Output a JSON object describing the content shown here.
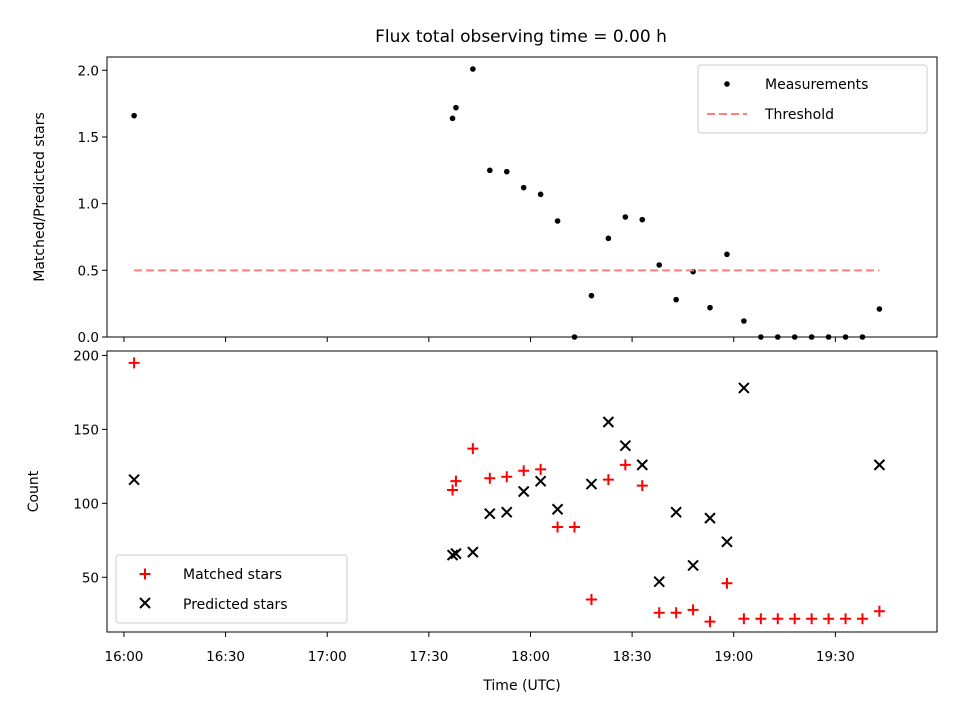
{
  "title": "Flux total observing time = 0.00 h",
  "colors": {
    "measurements": "#000000",
    "threshold": "#ff7f7f",
    "matched": "#ff0000",
    "predicted": "#000000"
  },
  "chart_data": [
    {
      "type": "scatter",
      "title": "Flux total observing time = 0.00 h",
      "ylabel": "Matched/Predicted stars",
      "xlabel": "",
      "xlim": [
        "15:55",
        "20:00"
      ],
      "ylim": [
        0,
        2.1
      ],
      "yticks": [
        "0.0",
        "0.5",
        "1.0",
        "1.5",
        "2.0"
      ],
      "legend_position": "top-right",
      "series": [
        {
          "name": "Measurements",
          "marker": "dot",
          "points": [
            [
              "16:03",
              1.66
            ],
            [
              "17:37",
              1.64
            ],
            [
              "17:38",
              1.72
            ],
            [
              "17:43",
              2.01
            ],
            [
              "17:48",
              1.25
            ],
            [
              "17:53",
              1.24
            ],
            [
              "17:58",
              1.12
            ],
            [
              "18:03",
              1.07
            ],
            [
              "18:08",
              0.87
            ],
            [
              "18:13",
              0.0
            ],
            [
              "18:18",
              0.31
            ],
            [
              "18:23",
              0.74
            ],
            [
              "18:28",
              0.9
            ],
            [
              "18:33",
              0.88
            ],
            [
              "18:38",
              0.54
            ],
            [
              "18:43",
              0.28
            ],
            [
              "18:48",
              0.49
            ],
            [
              "18:53",
              0.22
            ],
            [
              "18:58",
              0.62
            ],
            [
              "19:03",
              0.12
            ],
            [
              "19:08",
              0.0
            ],
            [
              "19:13",
              0.0
            ],
            [
              "19:18",
              0.0
            ],
            [
              "19:23",
              0.0
            ],
            [
              "19:28",
              0.0
            ],
            [
              "19:33",
              0.0
            ],
            [
              "19:38",
              0.0
            ],
            [
              "19:43",
              0.21
            ]
          ]
        },
        {
          "name": "Threshold",
          "marker": "dashed-line",
          "points": [
            [
              "16:03",
              0.5
            ],
            [
              "19:43",
              0.5
            ]
          ]
        }
      ]
    },
    {
      "type": "scatter",
      "title": "",
      "ylabel": "Count",
      "xlabel": "Time (UTC)",
      "xlim": [
        "15:55",
        "20:00"
      ],
      "ylim": [
        13,
        203
      ],
      "yticks": [
        "50",
        "100",
        "150",
        "200"
      ],
      "xticks": [
        "16:00",
        "16:30",
        "17:00",
        "17:30",
        "18:00",
        "18:30",
        "19:00",
        "19:30"
      ],
      "legend_position": "bottom-left",
      "series": [
        {
          "name": "Matched stars",
          "marker": "plus",
          "points": [
            [
              "16:03",
              195
            ],
            [
              "17:37",
              109
            ],
            [
              "17:38",
              115
            ],
            [
              "17:43",
              137
            ],
            [
              "17:48",
              117
            ],
            [
              "17:53",
              118
            ],
            [
              "17:58",
              122
            ],
            [
              "18:03",
              123
            ],
            [
              "18:08",
              84
            ],
            [
              "18:13",
              84
            ],
            [
              "18:18",
              35
            ],
            [
              "18:23",
              116
            ],
            [
              "18:28",
              126
            ],
            [
              "18:33",
              112
            ],
            [
              "18:38",
              26
            ],
            [
              "18:43",
              26
            ],
            [
              "18:48",
              28
            ],
            [
              "18:53",
              20
            ],
            [
              "18:58",
              46
            ],
            [
              "19:03",
              22
            ],
            [
              "19:08",
              22
            ],
            [
              "19:13",
              22
            ],
            [
              "19:18",
              22
            ],
            [
              "19:23",
              22
            ],
            [
              "19:28",
              22
            ],
            [
              "19:33",
              22
            ],
            [
              "19:38",
              22
            ],
            [
              "19:43",
              27
            ]
          ]
        },
        {
          "name": "Predicted stars",
          "marker": "x",
          "points": [
            [
              "16:03",
              116
            ],
            [
              "17:37",
              65
            ],
            [
              "17:38",
              66
            ],
            [
              "17:43",
              67
            ],
            [
              "17:48",
              93
            ],
            [
              "17:53",
              94
            ],
            [
              "17:58",
              108
            ],
            [
              "18:03",
              115
            ],
            [
              "18:08",
              96
            ],
            [
              "18:18",
              113
            ],
            [
              "18:23",
              155
            ],
            [
              "18:28",
              139
            ],
            [
              "18:33",
              126
            ],
            [
              "18:38",
              47
            ],
            [
              "18:43",
              94
            ],
            [
              "18:48",
              58
            ],
            [
              "18:53",
              90
            ],
            [
              "18:58",
              74
            ],
            [
              "19:03",
              178
            ],
            [
              "19:43",
              126
            ]
          ]
        }
      ]
    }
  ]
}
